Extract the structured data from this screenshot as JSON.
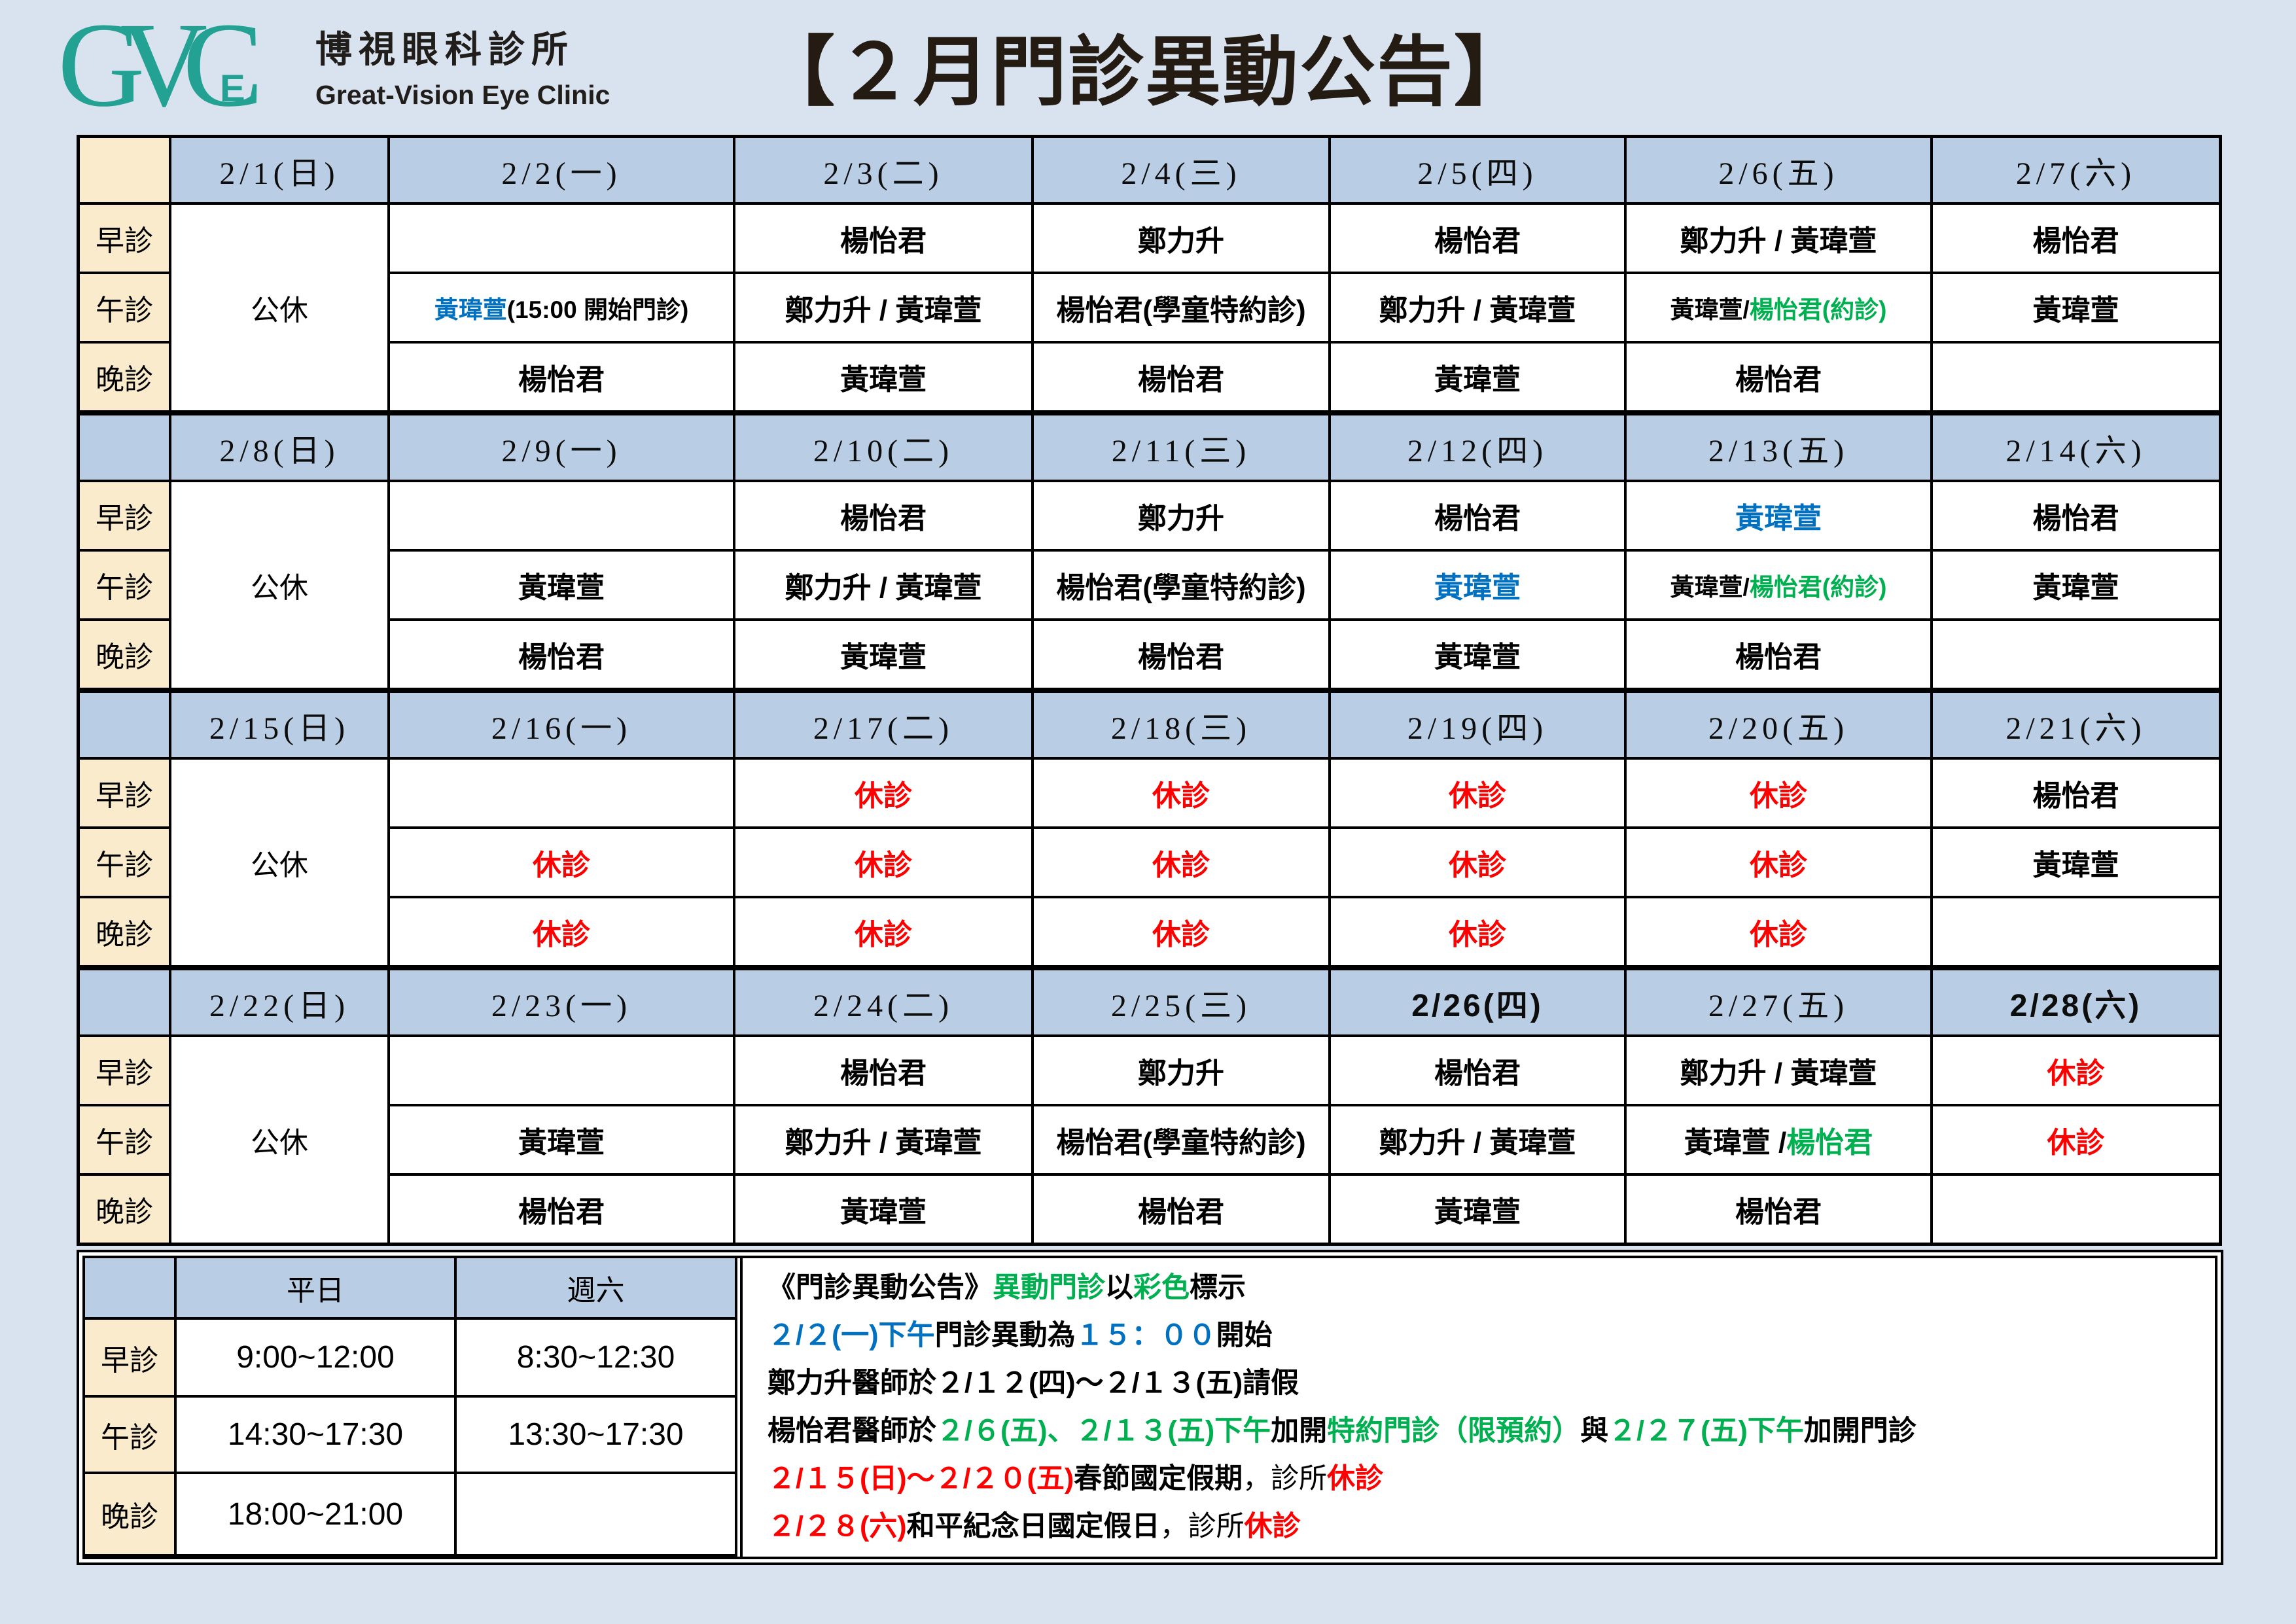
{
  "colors": {
    "page_bg": "#D9E3EF",
    "header_blue": "#B9CDE4",
    "label_cream": "#FAEBCD",
    "cell_white": "#FFFFFF",
    "border_black": "#000000",
    "title_dark": "#241B12",
    "logo_teal": "#23A193",
    "blue": "#0070C0",
    "green": "#00B050",
    "red": "#FF0000",
    "black": "#000000"
  },
  "logo": {
    "mark": "GVC",
    "mark_e": "E",
    "clinic_name_zh": "博視眼科診所",
    "clinic_name_en": "Great-Vision Eye Clinic"
  },
  "title": "【２月門診異動公告】",
  "schedule": {
    "session_labels": [
      "早診",
      "午診",
      "晚診"
    ],
    "closed_label": "公休",
    "weeks": [
      {
        "dates": [
          {
            "label": "2/1(日)",
            "bold": false
          },
          {
            "label": "2/2(一)",
            "bold": false
          },
          {
            "label": "2/3(二)",
            "bold": false
          },
          {
            "label": "2/4(三)",
            "bold": false
          },
          {
            "label": "2/5(四)",
            "bold": false
          },
          {
            "label": "2/6(五)",
            "bold": false
          },
          {
            "label": "2/7(六)",
            "bold": false
          }
        ],
        "rows": {
          "morning": [
            [],
            [
              {
                "t": "楊怡君"
              }
            ],
            [
              {
                "t": "鄭力升"
              }
            ],
            [
              {
                "t": "楊怡君"
              }
            ],
            [
              {
                "t": "鄭力升 / 黃瑋萱"
              }
            ],
            [
              {
                "t": "楊怡君"
              }
            ]
          ],
          "noon": [
            [
              {
                "t": "黃瑋萱",
                "c": "blue"
              },
              {
                "t": "(15:00 開始門診)"
              }
            ],
            [
              {
                "t": "鄭力升 / 黃瑋萱"
              }
            ],
            [
              {
                "t": "楊怡君(學童特約診)"
              }
            ],
            [
              {
                "t": "鄭力升 / 黃瑋萱"
              }
            ],
            [
              {
                "t": "黃瑋萱/"
              },
              {
                "t": "楊怡君(約診)",
                "c": "green"
              }
            ],
            [
              {
                "t": "黃瑋萱"
              }
            ]
          ],
          "evening": [
            [
              {
                "t": "楊怡君"
              }
            ],
            [
              {
                "t": "黃瑋萱"
              }
            ],
            [
              {
                "t": "楊怡君"
              }
            ],
            [
              {
                "t": "黃瑋萱"
              }
            ],
            [
              {
                "t": "楊怡君"
              }
            ],
            []
          ]
        }
      },
      {
        "dates": [
          {
            "label": "2/8(日)",
            "bold": false
          },
          {
            "label": "2/9(一)",
            "bold": false
          },
          {
            "label": "2/10(二)",
            "bold": false
          },
          {
            "label": "2/11(三)",
            "bold": false
          },
          {
            "label": "2/12(四)",
            "bold": false
          },
          {
            "label": "2/13(五)",
            "bold": false
          },
          {
            "label": "2/14(六)",
            "bold": false
          }
        ],
        "rows": {
          "morning": [
            [],
            [
              {
                "t": "楊怡君"
              }
            ],
            [
              {
                "t": "鄭力升"
              }
            ],
            [
              {
                "t": "楊怡君"
              }
            ],
            [
              {
                "t": "黃瑋萱",
                "c": "blue"
              }
            ],
            [
              {
                "t": "楊怡君"
              }
            ]
          ],
          "noon": [
            [
              {
                "t": "黃瑋萱"
              }
            ],
            [
              {
                "t": "鄭力升 / 黃瑋萱"
              }
            ],
            [
              {
                "t": "楊怡君(學童特約診)"
              }
            ],
            [
              {
                "t": "黃瑋萱",
                "c": "blue"
              }
            ],
            [
              {
                "t": "黃瑋萱/"
              },
              {
                "t": "楊怡君(約診)",
                "c": "green"
              }
            ],
            [
              {
                "t": "黃瑋萱"
              }
            ]
          ],
          "evening": [
            [
              {
                "t": "楊怡君"
              }
            ],
            [
              {
                "t": "黃瑋萱"
              }
            ],
            [
              {
                "t": "楊怡君"
              }
            ],
            [
              {
                "t": "黃瑋萱"
              }
            ],
            [
              {
                "t": "楊怡君"
              }
            ],
            []
          ]
        }
      },
      {
        "dates": [
          {
            "label": "2/15(日)",
            "bold": false
          },
          {
            "label": "2/16(一)",
            "bold": false
          },
          {
            "label": "2/17(二)",
            "bold": false
          },
          {
            "label": "2/18(三)",
            "bold": false
          },
          {
            "label": "2/19(四)",
            "bold": false
          },
          {
            "label": "2/20(五)",
            "bold": false
          },
          {
            "label": "2/21(六)",
            "bold": false
          }
        ],
        "rows": {
          "morning": [
            [],
            [
              {
                "t": "休診",
                "c": "red"
              }
            ],
            [
              {
                "t": "休診",
                "c": "red"
              }
            ],
            [
              {
                "t": "休診",
                "c": "red"
              }
            ],
            [
              {
                "t": "休診",
                "c": "red"
              }
            ],
            [
              {
                "t": "楊怡君"
              }
            ]
          ],
          "noon": [
            [
              {
                "t": "休診",
                "c": "red"
              }
            ],
            [
              {
                "t": "休診",
                "c": "red"
              }
            ],
            [
              {
                "t": "休診",
                "c": "red"
              }
            ],
            [
              {
                "t": "休診",
                "c": "red"
              }
            ],
            [
              {
                "t": "休診",
                "c": "red"
              }
            ],
            [
              {
                "t": "黃瑋萱"
              }
            ]
          ],
          "evening": [
            [
              {
                "t": "休診",
                "c": "red"
              }
            ],
            [
              {
                "t": "休診",
                "c": "red"
              }
            ],
            [
              {
                "t": "休診",
                "c": "red"
              }
            ],
            [
              {
                "t": "休診",
                "c": "red"
              }
            ],
            [
              {
                "t": "休診",
                "c": "red"
              }
            ],
            []
          ]
        }
      },
      {
        "dates": [
          {
            "label": "2/22(日)",
            "bold": false
          },
          {
            "label": "2/23(一)",
            "bold": false
          },
          {
            "label": "2/24(二)",
            "bold": false
          },
          {
            "label": "2/25(三)",
            "bold": false
          },
          {
            "label": "2/26(四)",
            "bold": true
          },
          {
            "label": "2/27(五)",
            "bold": false
          },
          {
            "label": "2/28(六)",
            "bold": true
          }
        ],
        "rows": {
          "morning": [
            [],
            [
              {
                "t": "楊怡君"
              }
            ],
            [
              {
                "t": "鄭力升"
              }
            ],
            [
              {
                "t": "楊怡君"
              }
            ],
            [
              {
                "t": "鄭力升 / 黃瑋萱"
              }
            ],
            [
              {
                "t": "休診",
                "c": "red"
              }
            ]
          ],
          "noon": [
            [
              {
                "t": "黃瑋萱"
              }
            ],
            [
              {
                "t": "鄭力升 / 黃瑋萱"
              }
            ],
            [
              {
                "t": "楊怡君(學童特約診)"
              }
            ],
            [
              {
                "t": "鄭力升 / 黃瑋萱"
              }
            ],
            [
              {
                "t": "黃瑋萱 / "
              },
              {
                "t": "楊怡君",
                "c": "green"
              }
            ],
            [
              {
                "t": "休診",
                "c": "red"
              }
            ]
          ],
          "evening": [
            [
              {
                "t": "楊怡君"
              }
            ],
            [
              {
                "t": "黃瑋萱"
              }
            ],
            [
              {
                "t": "楊怡君"
              }
            ],
            [
              {
                "t": "黃瑋萱"
              }
            ],
            [
              {
                "t": "楊怡君"
              }
            ],
            []
          ]
        }
      }
    ]
  },
  "hours_table": {
    "col_headers": [
      "平日",
      "週六"
    ],
    "rows": [
      {
        "label": "早診",
        "weekday": "9:00~12:00",
        "saturday": "8:30~12:30"
      },
      {
        "label": "午診",
        "weekday": "14:30~17:30",
        "saturday": "13:30~17:30"
      },
      {
        "label": "晚診",
        "weekday": "18:00~21:00",
        "saturday": ""
      }
    ]
  },
  "notices": [
    [
      {
        "t": "《門診異動公告》"
      },
      {
        "t": "異動門診",
        "c": "green"
      },
      {
        "t": "以"
      },
      {
        "t": "彩色",
        "c": "green"
      },
      {
        "t": "標示"
      }
    ],
    [
      {
        "t": "２/２(一)下午",
        "c": "blue"
      },
      {
        "t": "門診異動為"
      },
      {
        "t": "１５：００",
        "c": "blue"
      },
      {
        "t": "開始"
      }
    ],
    [
      {
        "t": "鄭力升醫師於２/１２(四)～２/１３(五)請假"
      }
    ],
    [
      {
        "t": "楊怡君醫師於"
      },
      {
        "t": "２/６(五)、２/１３(五)下午",
        "c": "green"
      },
      {
        "t": "加開"
      },
      {
        "t": "特約門診（限預約）",
        "c": "green"
      },
      {
        "t": "與"
      },
      {
        "t": "２/２７(五)下午",
        "c": "green"
      },
      {
        "t": "加開門診"
      }
    ],
    [
      {
        "t": "２/１５(日)～２/２０(五)",
        "c": "red"
      },
      {
        "t": "春節國定假期"
      },
      {
        "t": "，診所",
        "w": "normal"
      },
      {
        "t": "休診",
        "c": "red"
      }
    ],
    [
      {
        "t": "２/２８(六)",
        "c": "red"
      },
      {
        "t": "和平紀念日國定假日"
      },
      {
        "t": "，診所",
        "w": "normal"
      },
      {
        "t": "休診",
        "c": "red"
      }
    ]
  ]
}
